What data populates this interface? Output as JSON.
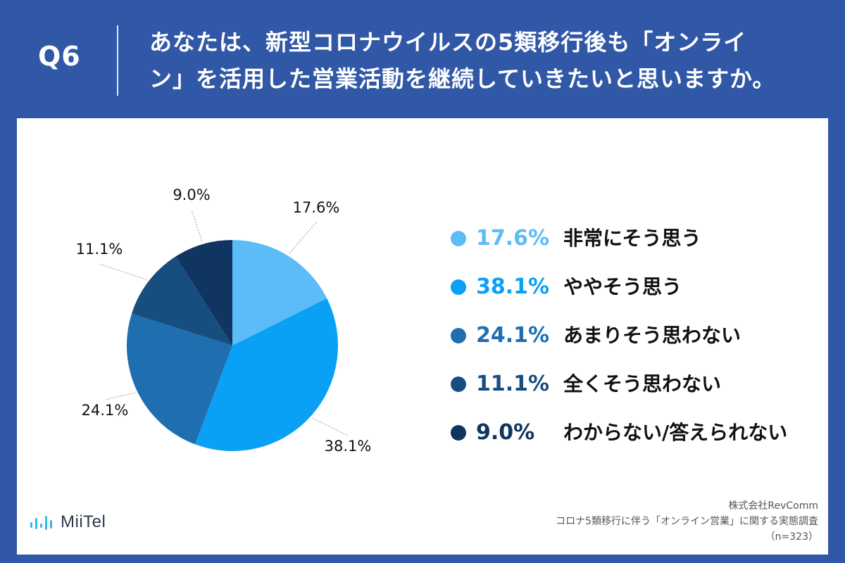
{
  "question": {
    "label": "Q6",
    "line1": "あなたは、新型コロナウイルスの5類移行後も「オンライ",
    "line2": "ン」を活用した営業活動を継続していきたいと思いますか。"
  },
  "chart_data": {
    "type": "pie",
    "title": "あなたは、新型コロナウイルスの5類移行後も「オンライン」を活用した営業活動を継続していきたいと思いますか。",
    "slices": [
      {
        "label": "非常にそう思う",
        "value": 17.6,
        "display": "17.6%",
        "color": "#5bbcf7"
      },
      {
        "label": "ややそう思う",
        "value": 38.1,
        "display": "38.1%",
        "color": "#0aa0f5"
      },
      {
        "label": "あまりそう思わない",
        "value": 24.1,
        "display": "24.1%",
        "color": "#1f6fb0"
      },
      {
        "label": "全くそう思わない",
        "value": 11.1,
        "display": "11.1%",
        "color": "#174d7f"
      },
      {
        "label": "わからない/答えられない",
        "value": 9.0,
        "display": "9.0%",
        "color": "#0f3560"
      }
    ],
    "legend_position": "right"
  },
  "source": {
    "company": "株式会社RevComm",
    "survey": "コロナ5類移行に伴う「オンライン営業」に関する実態調査",
    "sample": "（n=323）"
  },
  "brand": {
    "logo_text": "MiiTel"
  }
}
